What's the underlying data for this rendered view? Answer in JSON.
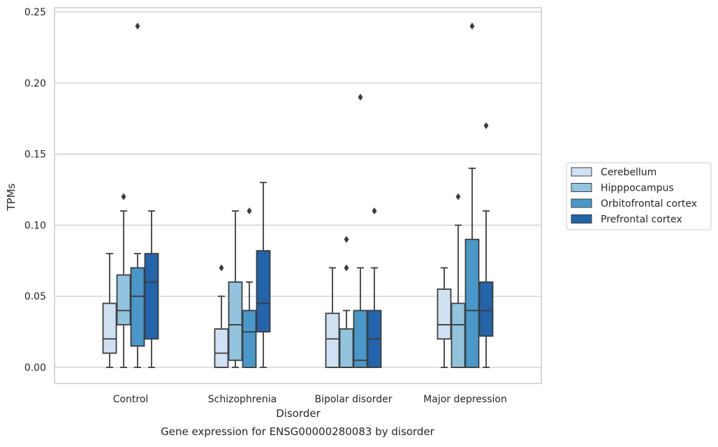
{
  "chart_data": {
    "type": "box",
    "title": "",
    "caption": "Gene expression for ENSG00000280083 by disorder",
    "xlabel": "Disorder",
    "ylabel": "TPMs",
    "ylim": [
      -0.012,
      0.253
    ],
    "yticks": [
      0.0,
      0.05,
      0.1,
      0.15,
      0.2,
      0.25
    ],
    "ytick_labels": [
      "0.00",
      "0.05",
      "0.10",
      "0.15",
      "0.20",
      "0.25"
    ],
    "grid": "horizontal",
    "legend_position": "right",
    "categories": [
      "Control",
      "Schizophrenia",
      "Bipolar disorder",
      "Major depression"
    ],
    "series": [
      {
        "name": "Cerebellum",
        "color": "#cfe1f2",
        "boxes": [
          {
            "whisker_low": 0.0,
            "q1": 0.01,
            "median": 0.02,
            "q3": 0.045,
            "whisker_high": 0.08,
            "outliers": []
          },
          {
            "whisker_low": 0.0,
            "q1": 0.0,
            "median": 0.01,
            "q3": 0.027,
            "whisker_high": 0.05,
            "outliers": [
              0.07
            ]
          },
          {
            "whisker_low": 0.0,
            "q1": 0.0,
            "median": 0.02,
            "q3": 0.038,
            "whisker_high": 0.07,
            "outliers": []
          },
          {
            "whisker_low": 0.0,
            "q1": 0.02,
            "median": 0.03,
            "q3": 0.055,
            "whisker_high": 0.07,
            "outliers": []
          }
        ]
      },
      {
        "name": "Hipppocampus",
        "color": "#93c4de",
        "boxes": [
          {
            "whisker_low": 0.0,
            "q1": 0.03,
            "median": 0.04,
            "q3": 0.065,
            "whisker_high": 0.11,
            "outliers": [
              0.12
            ]
          },
          {
            "whisker_low": 0.0,
            "q1": 0.005,
            "median": 0.03,
            "q3": 0.06,
            "whisker_high": 0.11,
            "outliers": []
          },
          {
            "whisker_low": 0.0,
            "q1": 0.0,
            "median": 0.0,
            "q3": 0.027,
            "whisker_high": 0.04,
            "outliers": [
              0.07,
              0.09
            ]
          },
          {
            "whisker_low": 0.0,
            "q1": 0.0,
            "median": 0.03,
            "q3": 0.045,
            "whisker_high": 0.1,
            "outliers": [
              0.12
            ]
          }
        ]
      },
      {
        "name": "Orbitofrontal cortex",
        "color": "#4a98c9",
        "boxes": [
          {
            "whisker_low": 0.0,
            "q1": 0.015,
            "median": 0.05,
            "q3": 0.07,
            "whisker_high": 0.08,
            "outliers": [
              0.24
            ]
          },
          {
            "whisker_low": 0.0,
            "q1": 0.0,
            "median": 0.025,
            "q3": 0.04,
            "whisker_high": 0.06,
            "outliers": [
              0.11
            ]
          },
          {
            "whisker_low": 0.0,
            "q1": 0.0,
            "median": 0.005,
            "q3": 0.04,
            "whisker_high": 0.07,
            "outliers": [
              0.19
            ]
          },
          {
            "whisker_low": 0.0,
            "q1": 0.0,
            "median": 0.04,
            "q3": 0.09,
            "whisker_high": 0.14,
            "outliers": [
              0.24
            ]
          }
        ]
      },
      {
        "name": "Prefrontal cortex",
        "color": "#2364aa",
        "boxes": [
          {
            "whisker_low": 0.0,
            "q1": 0.02,
            "median": 0.06,
            "q3": 0.08,
            "whisker_high": 0.11,
            "outliers": []
          },
          {
            "whisker_low": 0.0,
            "q1": 0.025,
            "median": 0.045,
            "q3": 0.082,
            "whisker_high": 0.13,
            "outliers": []
          },
          {
            "whisker_low": 0.0,
            "q1": 0.0,
            "median": 0.02,
            "q3": 0.04,
            "whisker_high": 0.07,
            "outliers": [
              0.11
            ]
          },
          {
            "whisker_low": 0.0,
            "q1": 0.022,
            "median": 0.04,
            "q3": 0.06,
            "whisker_high": 0.11,
            "outliers": [
              0.17
            ]
          }
        ]
      }
    ]
  },
  "colors": {
    "grid": "#cccccc",
    "frame": "#cccccc",
    "box_edge": "#3d3d3d",
    "text": "#262626"
  }
}
